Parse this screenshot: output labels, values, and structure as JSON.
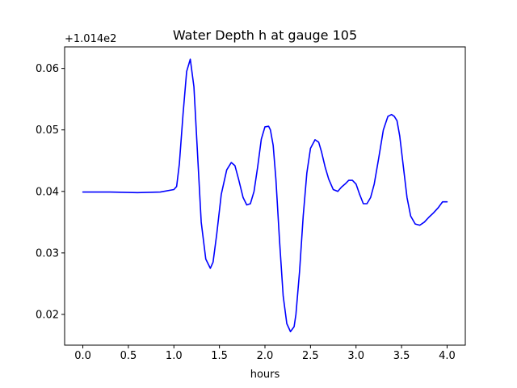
{
  "chart_data": {
    "type": "line",
    "title": "Water Depth h at gauge 105",
    "xlabel": "hours",
    "ylabel": "",
    "offset_label": "+1.014e2",
    "xlim": [
      -0.2,
      4.2
    ],
    "ylim": [
      0.015,
      0.0635
    ],
    "xticks": [
      0.0,
      0.5,
      1.0,
      1.5,
      2.0,
      2.5,
      3.0,
      3.5,
      4.0
    ],
    "xtick_labels": [
      "0.0",
      "0.5",
      "1.0",
      "1.5",
      "2.0",
      "2.5",
      "3.0",
      "3.5",
      "4.0"
    ],
    "yticks": [
      0.02,
      0.03,
      0.04,
      0.05,
      0.06
    ],
    "ytick_labels": [
      "0.02",
      "0.03",
      "0.04",
      "0.05",
      "0.06"
    ],
    "grid": false,
    "series": [
      {
        "color": "#0000ff",
        "x": [
          0.0,
          0.3,
          0.6,
          0.85,
          1.0,
          1.03,
          1.06,
          1.1,
          1.14,
          1.18,
          1.22,
          1.26,
          1.3,
          1.35,
          1.4,
          1.43,
          1.47,
          1.52,
          1.58,
          1.63,
          1.67,
          1.71,
          1.76,
          1.8,
          1.84,
          1.88,
          1.92,
          1.96,
          2.0,
          2.04,
          2.06,
          2.09,
          2.12,
          2.16,
          2.2,
          2.24,
          2.28,
          2.32,
          2.34,
          2.38,
          2.42,
          2.46,
          2.5,
          2.55,
          2.59,
          2.62,
          2.66,
          2.7,
          2.75,
          2.8,
          2.84,
          2.88,
          2.92,
          2.96,
          3.0,
          3.04,
          3.08,
          3.12,
          3.16,
          3.2,
          3.25,
          3.3,
          3.35,
          3.39,
          3.42,
          3.45,
          3.48,
          3.52,
          3.56,
          3.6,
          3.65,
          3.7,
          3.75,
          3.8,
          3.85,
          3.9,
          3.95,
          4.0
        ],
        "y": [
          0.0399,
          0.0399,
          0.0398,
          0.0399,
          0.0403,
          0.0408,
          0.0445,
          0.0525,
          0.0595,
          0.0615,
          0.057,
          0.046,
          0.035,
          0.029,
          0.0275,
          0.0285,
          0.033,
          0.0395,
          0.0435,
          0.0447,
          0.0442,
          0.042,
          0.039,
          0.0378,
          0.038,
          0.04,
          0.044,
          0.0485,
          0.0505,
          0.0506,
          0.05,
          0.0475,
          0.042,
          0.032,
          0.023,
          0.0185,
          0.0172,
          0.018,
          0.02,
          0.027,
          0.036,
          0.043,
          0.047,
          0.0484,
          0.048,
          0.0465,
          0.044,
          0.042,
          0.0403,
          0.04,
          0.0407,
          0.0412,
          0.0418,
          0.0418,
          0.0412,
          0.0395,
          0.038,
          0.038,
          0.039,
          0.0412,
          0.0455,
          0.05,
          0.0522,
          0.0525,
          0.0522,
          0.0515,
          0.049,
          0.044,
          0.039,
          0.036,
          0.0347,
          0.0345,
          0.035,
          0.0358,
          0.0365,
          0.0373,
          0.0383,
          0.0383
        ]
      }
    ]
  }
}
